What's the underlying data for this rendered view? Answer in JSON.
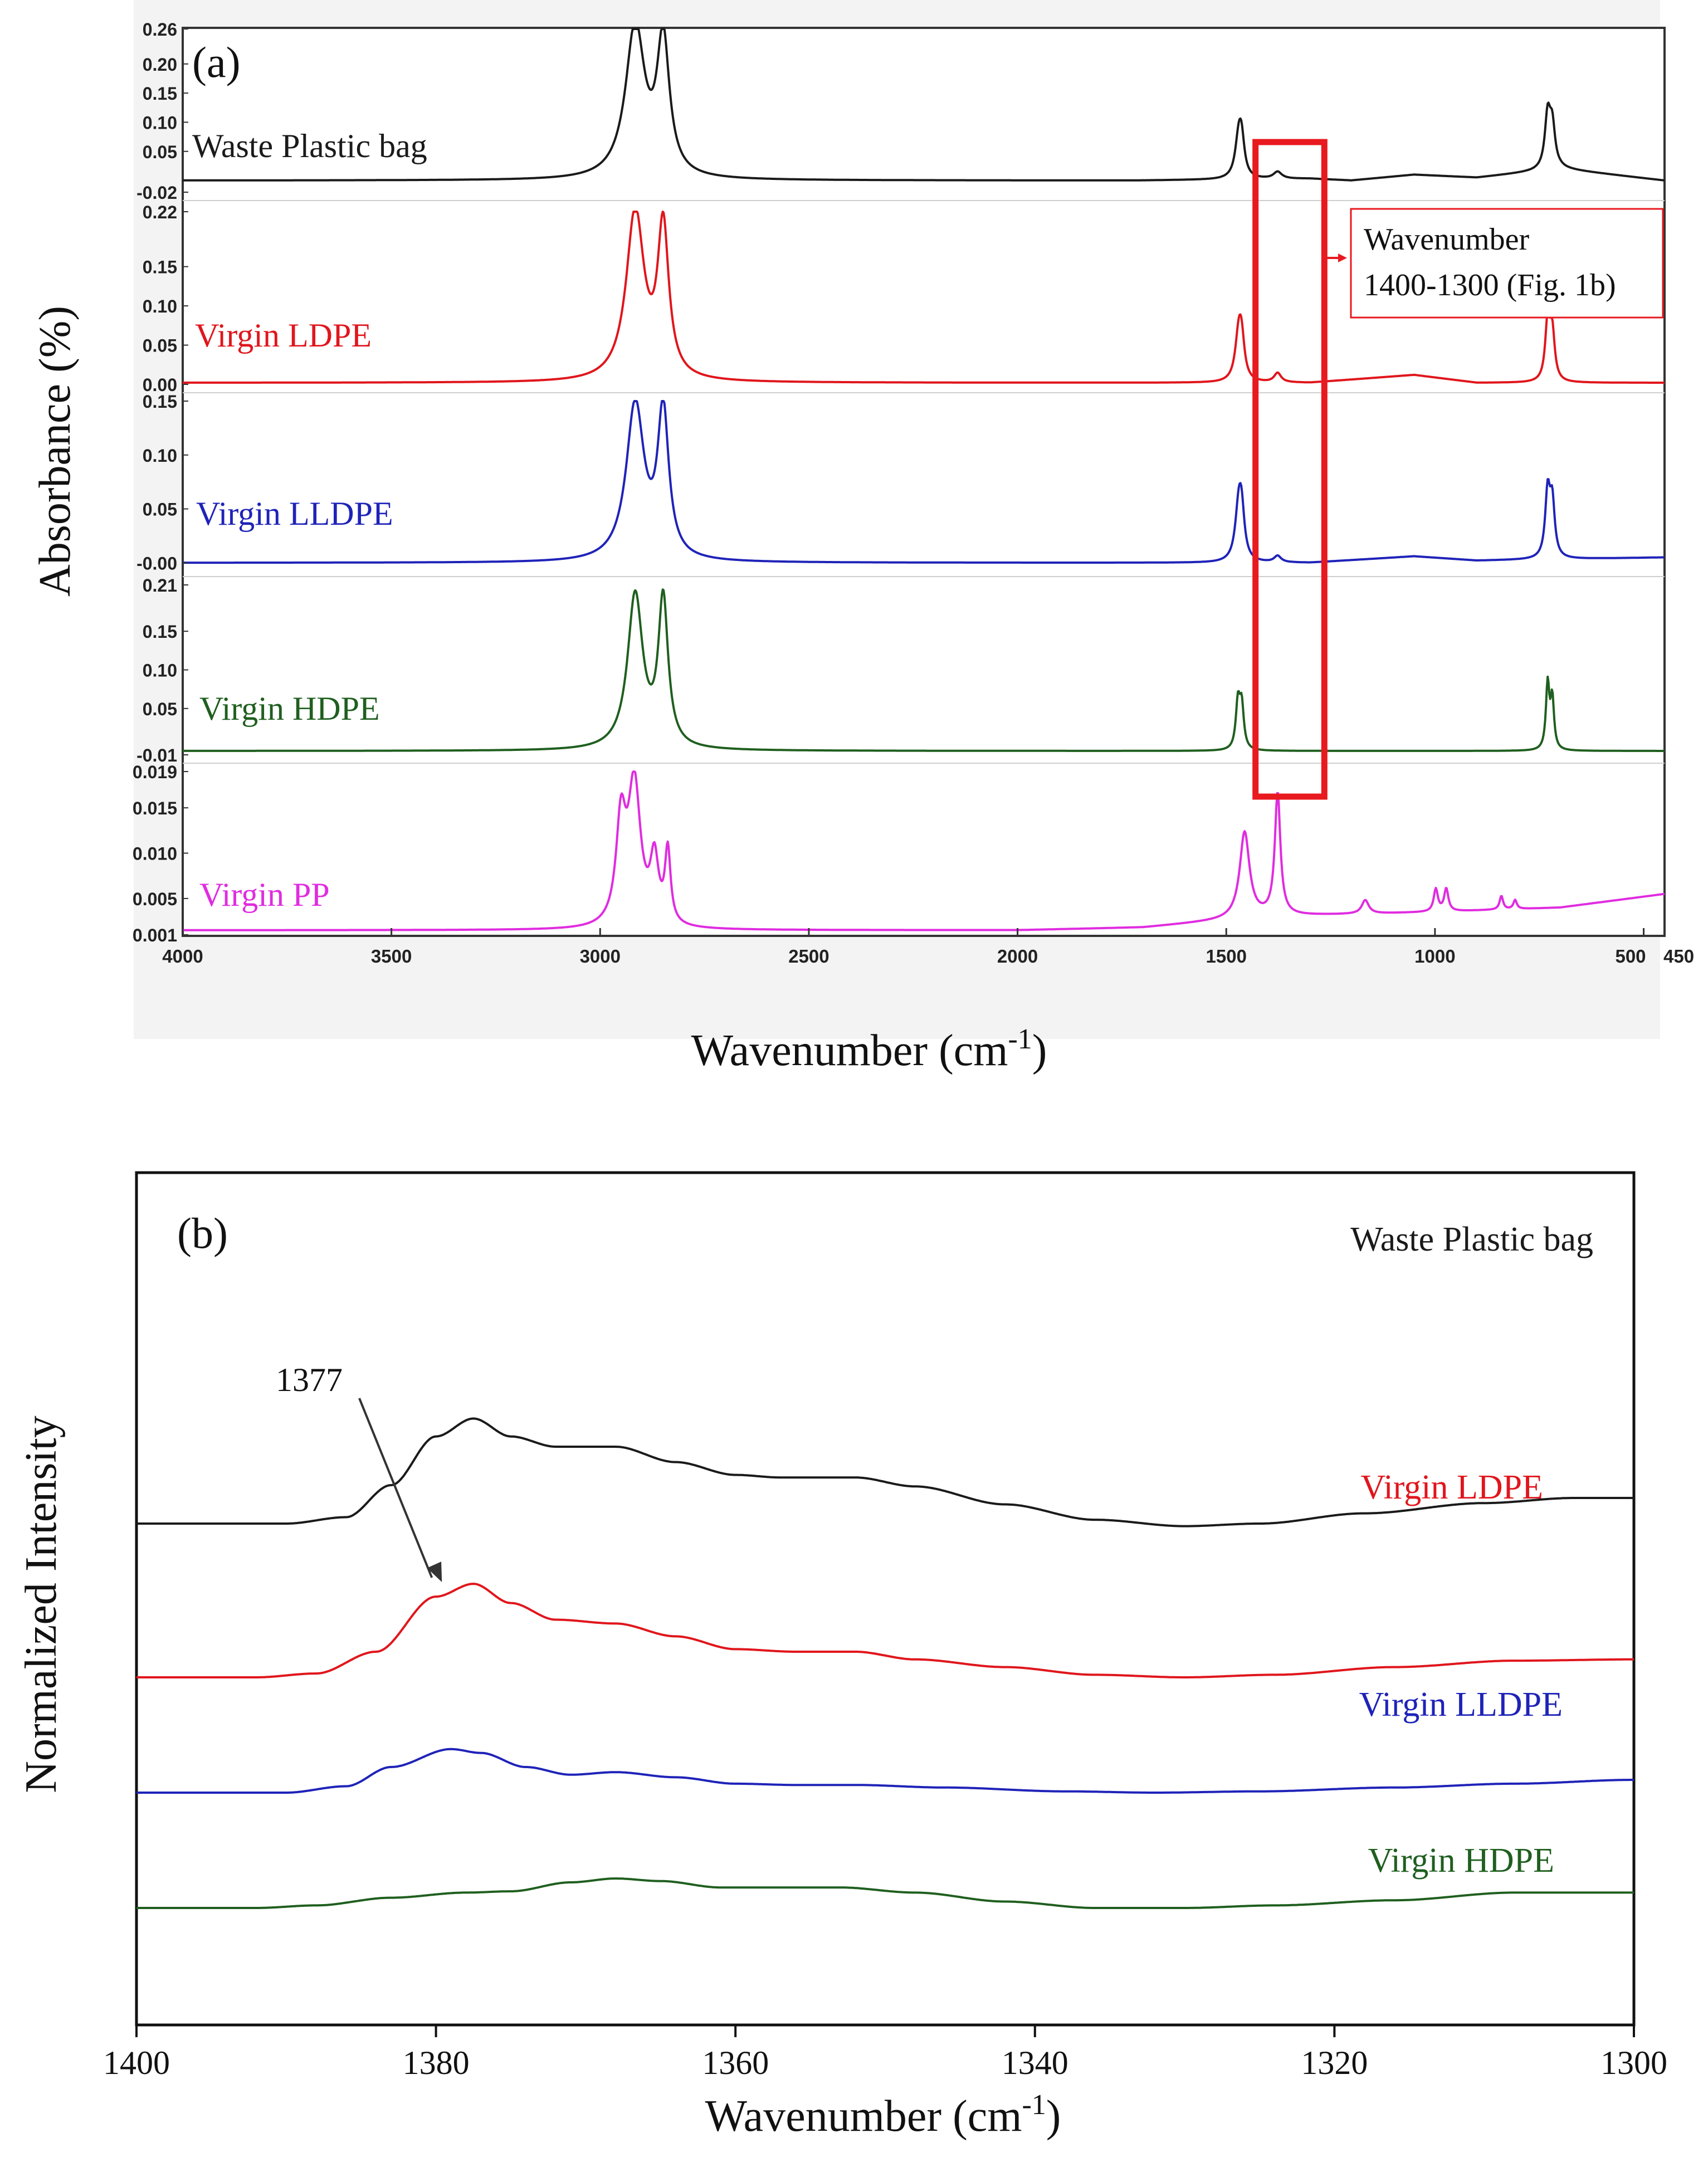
{
  "chart_data": [
    {
      "id": "a",
      "type": "line",
      "panel_label": "(a)",
      "xlabel": "Wavenumber (cm-1)",
      "xlabel_main": "Wavenumber (cm",
      "xlabel_sup": "-1",
      "xlabel_close": ")",
      "ylabel": "Absorbance (%)",
      "xlim": [
        4000,
        450
      ],
      "x_ticks": [
        4000,
        3500,
        3000,
        2500,
        2000,
        1500,
        1000,
        500,
        450
      ],
      "x_tick_labels": [
        "4000",
        "3500",
        "3000",
        "2500",
        "2000",
        "1500",
        "1000",
        "500",
        "450"
      ],
      "highlight": {
        "range": [
          1430,
          1265
        ],
        "color": "#e8191f"
      },
      "callout": "Wavenumber 1400-1300 (Fig. 1b)",
      "callout_lines": [
        "Wavenumber",
        "1400-1300 (Fig. 1b)"
      ],
      "series": [
        {
          "name": "Waste Plastic bag",
          "color": "#1a1a1a",
          "ylim": [
            -0.02,
            0.26
          ],
          "y_tick_labels": [
            "0.26",
            "0.20",
            "0.15",
            "0.10",
            "0.05",
            "-0.02"
          ],
          "y_ticks": [
            0.26,
            0.2,
            0.15,
            0.1,
            0.05,
            -0.02
          ],
          "baseline": 0.0,
          "drift": [
            [
              4000,
              0.0
            ],
            [
              3000,
              0.0
            ],
            [
              1700,
              0.0
            ],
            [
              1300,
              0.003
            ],
            [
              1200,
              0.0
            ],
            [
              1050,
              0.01
            ],
            [
              900,
              0.005
            ],
            [
              700,
              0.02
            ],
            [
              450,
              0.0
            ]
          ],
          "peaks": [
            [
              2916,
              0.26,
              28
            ],
            [
              2849,
              0.23,
              18
            ],
            [
              1470,
              0.07,
              10
            ],
            [
              1463,
              0.05,
              8
            ],
            [
              1377,
              0.012,
              12
            ],
            [
              730,
              0.09,
              8
            ],
            [
              719,
              0.07,
              8
            ]
          ]
        },
        {
          "name": "Virgin LDPE",
          "color": "#e0161c",
          "ylim": [
            0.0,
            0.22
          ],
          "y_tick_labels": [
            "0.22",
            "0.15",
            "0.10",
            "0.05",
            "0.00"
          ],
          "y_ticks": [
            0.22,
            0.15,
            0.1,
            0.05,
            0.0
          ],
          "baseline": 0.002,
          "drift": [
            [
              4000,
              0.0
            ],
            [
              1700,
              0.0
            ],
            [
              1300,
              0.0
            ],
            [
              1050,
              0.01
            ],
            [
              900,
              0.0
            ],
            [
              450,
              0.0
            ]
          ],
          "peaks": [
            [
              2916,
              0.215,
              26
            ],
            [
              2849,
              0.19,
              16
            ],
            [
              1470,
              0.06,
              10
            ],
            [
              1463,
              0.04,
              8
            ],
            [
              1377,
              0.012,
              10
            ],
            [
              730,
              0.075,
              7
            ],
            [
              719,
              0.06,
              7
            ]
          ]
        },
        {
          "name": "Virgin LLDPE",
          "color": "#1f23b8",
          "ylim": [
            -0.005,
            0.15
          ],
          "y_tick_labels": [
            "0.15",
            "0.10",
            "0.05",
            "-0.00"
          ],
          "y_ticks": [
            0.15,
            0.1,
            0.05,
            0.0
          ],
          "baseline": 0.0,
          "drift": [
            [
              4000,
              0.0
            ],
            [
              1700,
              0.0
            ],
            [
              1300,
              0.0
            ],
            [
              1050,
              0.006
            ],
            [
              900,
              0.002
            ],
            [
              450,
              0.005
            ]
          ],
          "peaks": [
            [
              2916,
              0.145,
              26
            ],
            [
              2849,
              0.135,
              16
            ],
            [
              1470,
              0.05,
              10
            ],
            [
              1463,
              0.035,
              8
            ],
            [
              1377,
              0.006,
              10
            ],
            [
              730,
              0.06,
              7
            ],
            [
              719,
              0.05,
              7
            ]
          ]
        },
        {
          "name": "Virgin HDPE",
          "color": "#1f5f1f",
          "ylim": [
            -0.01,
            0.21
          ],
          "y_tick_labels": [
            "0.21",
            "0.15",
            "0.10",
            "0.05",
            "-0.01"
          ],
          "y_ticks": [
            0.21,
            0.15,
            0.1,
            0.05,
            -0.01
          ],
          "baseline": -0.005,
          "drift": [
            [
              4000,
              0.0
            ],
            [
              450,
              0.0
            ]
          ],
          "peaks": [
            [
              2916,
              0.2,
              22
            ],
            [
              2849,
              0.19,
              14
            ],
            [
              1472,
              0.06,
              6
            ],
            [
              1463,
              0.055,
              6
            ],
            [
              730,
              0.085,
              5
            ],
            [
              719,
              0.065,
              5
            ]
          ]
        },
        {
          "name": "Virgin PP",
          "color": "#e02ce0",
          "ylim": [
            0.001,
            0.019
          ],
          "y_tick_labels": [
            "0.019",
            "0.015",
            "0.010",
            "0.005",
            "0.001"
          ],
          "y_ticks": [
            0.019,
            0.015,
            0.01,
            0.005,
            0.001
          ],
          "baseline": 0.0015,
          "drift": [
            [
              4000,
              0.0
            ],
            [
              3000,
              0.0
            ],
            [
              2000,
              0.0
            ],
            [
              1700,
              0.0003
            ],
            [
              1400,
              0.0015
            ],
            [
              1000,
              0.002
            ],
            [
              700,
              0.0025
            ],
            [
              450,
              0.004
            ]
          ],
          "peaks": [
            [
              2950,
              0.011,
              14
            ],
            [
              2918,
              0.0155,
              18
            ],
            [
              2870,
              0.007,
              12
            ],
            [
              2838,
              0.008,
              8
            ],
            [
              1456,
              0.0095,
              14
            ],
            [
              1377,
              0.0135,
              8
            ],
            [
              1167,
              0.0015,
              10
            ],
            [
              998,
              0.0025,
              6
            ],
            [
              973,
              0.0025,
              6
            ],
            [
              841,
              0.0015,
              5
            ],
            [
              808,
              0.001,
              5
            ]
          ]
        }
      ]
    },
    {
      "id": "b",
      "type": "line",
      "panel_label": "(b)",
      "xlabel": "Wavenumber (cm-1)",
      "xlabel_main": "Wavenumber (cm",
      "xlabel_sup": "-1",
      "xlabel_close": ")",
      "ylabel": "Normalized Intensity",
      "xlim": [
        1400,
        1300
      ],
      "x_ticks": [
        1400,
        1380,
        1360,
        1340,
        1320,
        1300
      ],
      "x_tick_labels": [
        "1400",
        "1380",
        "1360",
        "1340",
        "1320",
        "1300"
      ],
      "annotation": {
        "text": "1377",
        "x": 1377
      },
      "series": [
        {
          "name": "Waste Plastic bag",
          "color": "#1a1a1a",
          "offset": 3.0,
          "points": [
            [
              1400,
              0.0
            ],
            [
              1390,
              0.0
            ],
            [
              1386,
              0.05
            ],
            [
              1383,
              0.3
            ],
            [
              1380,
              0.68
            ],
            [
              1377.5,
              0.82
            ],
            [
              1375,
              0.68
            ],
            [
              1372,
              0.6
            ],
            [
              1368,
              0.6
            ],
            [
              1364,
              0.48
            ],
            [
              1360,
              0.38
            ],
            [
              1357,
              0.36
            ],
            [
              1352,
              0.36
            ],
            [
              1348,
              0.29
            ],
            [
              1342,
              0.15
            ],
            [
              1336,
              0.03
            ],
            [
              1330,
              -0.02
            ],
            [
              1325,
              0.0
            ],
            [
              1318,
              0.08
            ],
            [
              1310,
              0.16
            ],
            [
              1304,
              0.2
            ],
            [
              1300,
              0.2
            ]
          ]
        },
        {
          "name": "Virgin LDPE",
          "color": "#e0161c",
          "offset": 1.8,
          "points": [
            [
              1400,
              0.0
            ],
            [
              1392,
              0.0
            ],
            [
              1388,
              0.03
            ],
            [
              1384,
              0.2
            ],
            [
              1380,
              0.63
            ],
            [
              1377.5,
              0.73
            ],
            [
              1375,
              0.58
            ],
            [
              1372,
              0.45
            ],
            [
              1368,
              0.42
            ],
            [
              1364,
              0.32
            ],
            [
              1360,
              0.22
            ],
            [
              1356,
              0.2
            ],
            [
              1352,
              0.2
            ],
            [
              1348,
              0.14
            ],
            [
              1342,
              0.08
            ],
            [
              1336,
              0.02
            ],
            [
              1330,
              0.0
            ],
            [
              1324,
              0.02
            ],
            [
              1316,
              0.08
            ],
            [
              1308,
              0.13
            ],
            [
              1300,
              0.14
            ]
          ]
        },
        {
          "name": "Virgin LLDPE",
          "color": "#1f23b8",
          "offset": 0.9,
          "points": [
            [
              1400,
              0.0
            ],
            [
              1390,
              0.0
            ],
            [
              1386,
              0.05
            ],
            [
              1383,
              0.2
            ],
            [
              1379,
              0.34
            ],
            [
              1377,
              0.31
            ],
            [
              1374,
              0.2
            ],
            [
              1371,
              0.14
            ],
            [
              1368,
              0.16
            ],
            [
              1364,
              0.12
            ],
            [
              1360,
              0.07
            ],
            [
              1356,
              0.06
            ],
            [
              1352,
              0.06
            ],
            [
              1346,
              0.04
            ],
            [
              1338,
              0.01
            ],
            [
              1332,
              0.0
            ],
            [
              1325,
              0.01
            ],
            [
              1316,
              0.04
            ],
            [
              1308,
              0.07
            ],
            [
              1300,
              0.1
            ]
          ]
        },
        {
          "name": "Virgin HDPE",
          "color": "#1f5f1f",
          "offset": 0.0,
          "points": [
            [
              1400,
              0.0
            ],
            [
              1392,
              0.0
            ],
            [
              1388,
              0.02
            ],
            [
              1383,
              0.08
            ],
            [
              1378,
              0.12
            ],
            [
              1375,
              0.13
            ],
            [
              1371,
              0.2
            ],
            [
              1368,
              0.23
            ],
            [
              1365,
              0.21
            ],
            [
              1361,
              0.16
            ],
            [
              1357,
              0.16
            ],
            [
              1353,
              0.16
            ],
            [
              1348,
              0.12
            ],
            [
              1342,
              0.05
            ],
            [
              1336,
              0.0
            ],
            [
              1330,
              0.0
            ],
            [
              1324,
              0.02
            ],
            [
              1316,
              0.06
            ],
            [
              1308,
              0.12
            ],
            [
              1300,
              0.12
            ]
          ]
        }
      ]
    }
  ]
}
